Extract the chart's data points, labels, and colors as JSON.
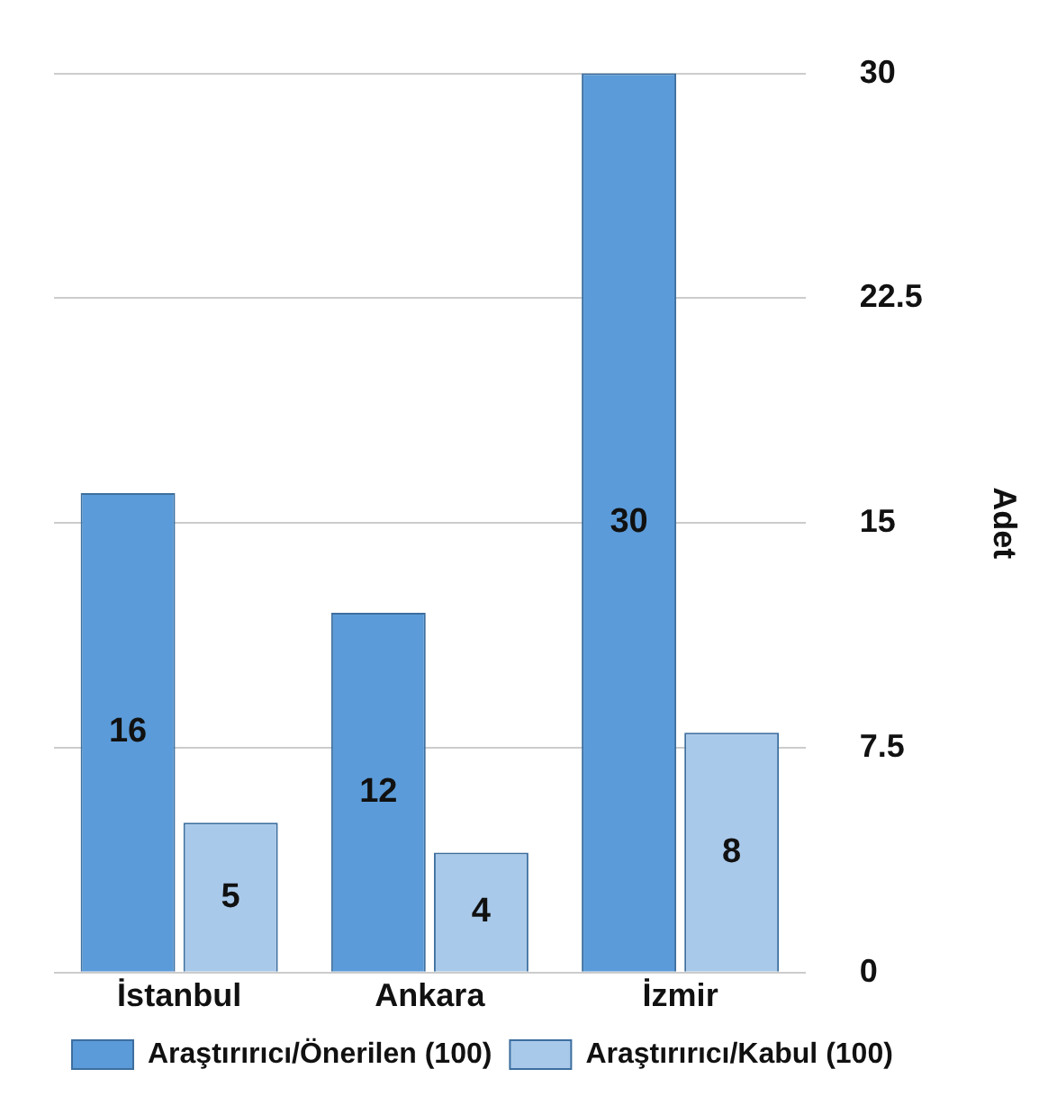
{
  "chart_data": {
    "type": "bar",
    "ylabel": "Adet",
    "categories": [
      "İstanbul",
      "Ankara",
      "İzmir"
    ],
    "series": [
      {
        "name": "Araştırırıcı/Önerilen (100)",
        "color": "#5b9bd9",
        "values": [
          16,
          12,
          30
        ]
      },
      {
        "name": "Araştırırıcı/Kabul (100)",
        "color": "#a9c9ea",
        "values": [
          5,
          4,
          8
        ]
      }
    ],
    "ylim": [
      0,
      30
    ],
    "yticks": [
      0,
      7.5,
      15,
      22.5,
      30
    ],
    "grid": "y",
    "legend": "bottom",
    "data_labels": true
  }
}
